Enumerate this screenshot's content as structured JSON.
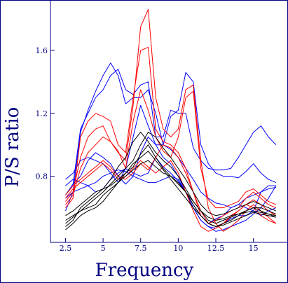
{
  "chart_data": {
    "type": "line",
    "xlabel": "Frequency",
    "ylabel": "P/S ratio",
    "xlim": [
      1.5,
      17.3
    ],
    "ylim": [
      0.38,
      1.92
    ],
    "x_ticks": [
      2.5,
      5,
      7.5,
      10,
      12.5,
      15
    ],
    "x_tick_labels": [
      "2.5",
      "5",
      "7.5",
      "10",
      "12.5",
      "15"
    ],
    "y_ticks": [
      0.8,
      1.2,
      1.6
    ],
    "y_tick_labels": [
      "0.8",
      "1.2",
      "1.6"
    ],
    "grid": false,
    "legend": "none",
    "colors": {
      "axis": "#000080",
      "blue": "#0000ff",
      "red": "#ff0000",
      "black": "#000000"
    },
    "x": [
      2.5,
      3.0,
      3.5,
      4.0,
      4.5,
      5.0,
      5.5,
      6.0,
      6.5,
      7.0,
      7.5,
      8.0,
      8.5,
      9.0,
      9.5,
      10.0,
      10.5,
      11.0,
      11.5,
      12.0,
      12.5,
      13.0,
      13.5,
      14.0,
      14.5,
      15.0,
      15.5,
      16.0,
      16.5
    ],
    "series": [
      {
        "color": "blue",
        "values": [
          0.68,
          0.75,
          1.1,
          1.2,
          1.3,
          1.35,
          1.44,
          1.48,
          1.35,
          1.32,
          1.38,
          1.4,
          1.05,
          1.05,
          1.22,
          1.2,
          1.2,
          0.98,
          0.9,
          0.85,
          0.84,
          0.84,
          0.85,
          0.92,
          1.0,
          1.08,
          1.12,
          1.05,
          1.0
        ]
      },
      {
        "color": "blue",
        "values": [
          0.58,
          0.7,
          1.08,
          1.22,
          1.34,
          1.44,
          1.52,
          1.44,
          1.26,
          1.3,
          1.3,
          1.35,
          1.2,
          1.0,
          1.18,
          1.22,
          1.46,
          1.4,
          1.0,
          0.88,
          0.82,
          0.8,
          0.8,
          0.79,
          0.83,
          0.88,
          0.82,
          0.78,
          0.76
        ]
      },
      {
        "color": "blue",
        "values": [
          0.78,
          0.82,
          0.9,
          0.92,
          0.9,
          0.88,
          0.82,
          0.76,
          0.85,
          1.05,
          1.25,
          1.12,
          1.0,
          1.0,
          0.97,
          0.92,
          0.85,
          0.78,
          0.7,
          0.66,
          0.63,
          0.62,
          0.6,
          0.62,
          0.66,
          0.68,
          0.7,
          0.72,
          0.73
        ]
      },
      {
        "color": "blue",
        "values": [
          0.68,
          0.75,
          0.8,
          0.9,
          0.95,
          0.92,
          0.88,
          0.8,
          0.75,
          0.8,
          0.95,
          1.05,
          1.0,
          0.92,
          0.88,
          0.8,
          0.7,
          0.62,
          0.55,
          0.5,
          0.53,
          0.55,
          0.6,
          0.62,
          0.6,
          0.58,
          0.55,
          0.58,
          0.6
        ]
      },
      {
        "color": "blue",
        "values": [
          0.74,
          0.78,
          0.76,
          0.74,
          0.76,
          0.8,
          0.82,
          0.84,
          0.83,
          0.8,
          0.78,
          0.76,
          0.76,
          0.78,
          0.8,
          0.78,
          0.7,
          0.6,
          0.52,
          0.48,
          0.47,
          0.5,
          0.53,
          0.55,
          0.55,
          0.58,
          0.7,
          0.74,
          0.74
        ]
      },
      {
        "color": "blue",
        "values": [
          0.66,
          0.7,
          0.72,
          0.74,
          0.7,
          0.72,
          0.78,
          0.82,
          0.85,
          0.82,
          0.8,
          0.82,
          0.92,
          0.86,
          0.82,
          0.77,
          0.7,
          0.6,
          0.52,
          0.48,
          0.45,
          0.46,
          0.48,
          0.5,
          0.52,
          0.56,
          0.6,
          0.66,
          0.74
        ]
      },
      {
        "color": "red",
        "values": [
          0.6,
          0.66,
          1.05,
          1.15,
          1.2,
          1.18,
          1.15,
          1.0,
          0.95,
          1.3,
          1.6,
          1.62,
          1.1,
          1.02,
          1.0,
          0.95,
          0.85,
          0.7,
          0.55,
          0.5,
          0.52,
          0.55,
          0.58,
          0.6,
          0.66,
          0.7,
          0.66,
          0.62,
          0.6
        ]
      },
      {
        "color": "red",
        "values": [
          0.64,
          0.7,
          0.92,
          1.05,
          1.1,
          1.12,
          1.02,
          0.96,
          0.85,
          1.15,
          1.35,
          1.22,
          1.05,
          0.96,
          0.92,
          1.05,
          1.3,
          1.34,
          0.85,
          0.65,
          0.6,
          0.6,
          0.62,
          0.64,
          0.7,
          0.72,
          0.68,
          0.64,
          0.62
        ]
      },
      {
        "color": "red",
        "values": [
          0.62,
          0.68,
          0.85,
          0.95,
          1.0,
          1.05,
          1.02,
          0.95,
          0.9,
          1.25,
          1.75,
          1.86,
          1.3,
          1.1,
          1.05,
          1.1,
          1.35,
          1.38,
          0.9,
          0.6,
          0.5,
          0.45,
          0.48,
          0.52,
          0.58,
          0.62,
          0.58,
          0.54,
          0.5
        ]
      },
      {
        "color": "red",
        "values": [
          0.66,
          0.72,
          0.76,
          0.8,
          0.84,
          0.88,
          0.84,
          0.78,
          0.8,
          0.85,
          0.9,
          0.86,
          0.82,
          0.86,
          0.9,
          0.82,
          0.7,
          0.58,
          0.48,
          0.45,
          0.47,
          0.5,
          0.54,
          0.58,
          0.62,
          0.6,
          0.55,
          0.52,
          0.5
        ]
      },
      {
        "color": "red",
        "values": [
          0.68,
          0.74,
          0.78,
          0.82,
          0.86,
          0.9,
          0.86,
          0.8,
          0.78,
          0.82,
          0.88,
          0.84,
          0.92,
          1.0,
          0.98,
          0.92,
          0.82,
          0.7,
          0.58,
          0.5,
          0.48,
          0.5,
          0.55,
          0.58,
          0.62,
          0.65,
          0.62,
          0.58,
          0.55
        ]
      },
      {
        "color": "black",
        "values": [
          0.52,
          0.55,
          0.58,
          0.62,
          0.66,
          0.7,
          0.75,
          0.8,
          0.85,
          0.9,
          1.0,
          1.08,
          1.05,
          0.98,
          0.92,
          0.85,
          0.78,
          0.7,
          0.62,
          0.57,
          0.55,
          0.56,
          0.58,
          0.6,
          0.62,
          0.64,
          0.62,
          0.6,
          0.58
        ]
      },
      {
        "color": "black",
        "values": [
          0.55,
          0.58,
          0.62,
          0.66,
          0.7,
          0.72,
          0.78,
          0.86,
          0.92,
          1.02,
          1.08,
          1.02,
          0.95,
          0.9,
          0.86,
          0.8,
          0.72,
          0.64,
          0.58,
          0.52,
          0.5,
          0.52,
          0.54,
          0.56,
          0.58,
          0.6,
          0.6,
          0.58,
          0.56
        ]
      },
      {
        "color": "black",
        "values": [
          0.48,
          0.52,
          0.6,
          0.64,
          0.68,
          0.72,
          0.74,
          0.78,
          0.82,
          0.86,
          0.94,
          1.0,
          0.92,
          0.85,
          0.8,
          0.75,
          0.7,
          0.62,
          0.55,
          0.5,
          0.48,
          0.5,
          0.52,
          0.55,
          0.58,
          0.6,
          0.58,
          0.56,
          0.54
        ]
      },
      {
        "color": "black",
        "values": [
          0.5,
          0.54,
          0.58,
          0.6,
          0.62,
          0.68,
          0.72,
          0.76,
          0.8,
          0.84,
          0.88,
          0.9,
          0.86,
          0.82,
          0.8,
          0.76,
          0.7,
          0.64,
          0.58,
          0.54,
          0.52,
          0.53,
          0.55,
          0.56,
          0.57,
          0.58,
          0.57,
          0.56,
          0.55
        ]
      },
      {
        "color": "black",
        "values": [
          0.46,
          0.5,
          0.55,
          0.58,
          0.6,
          0.64,
          0.7,
          0.76,
          0.82,
          0.88,
          0.92,
          0.96,
          0.9,
          0.84,
          0.78,
          0.72,
          0.66,
          0.6,
          0.55,
          0.5,
          0.48,
          0.49,
          0.51,
          0.53,
          0.55,
          0.57,
          0.56,
          0.55,
          0.54
        ]
      }
    ]
  }
}
